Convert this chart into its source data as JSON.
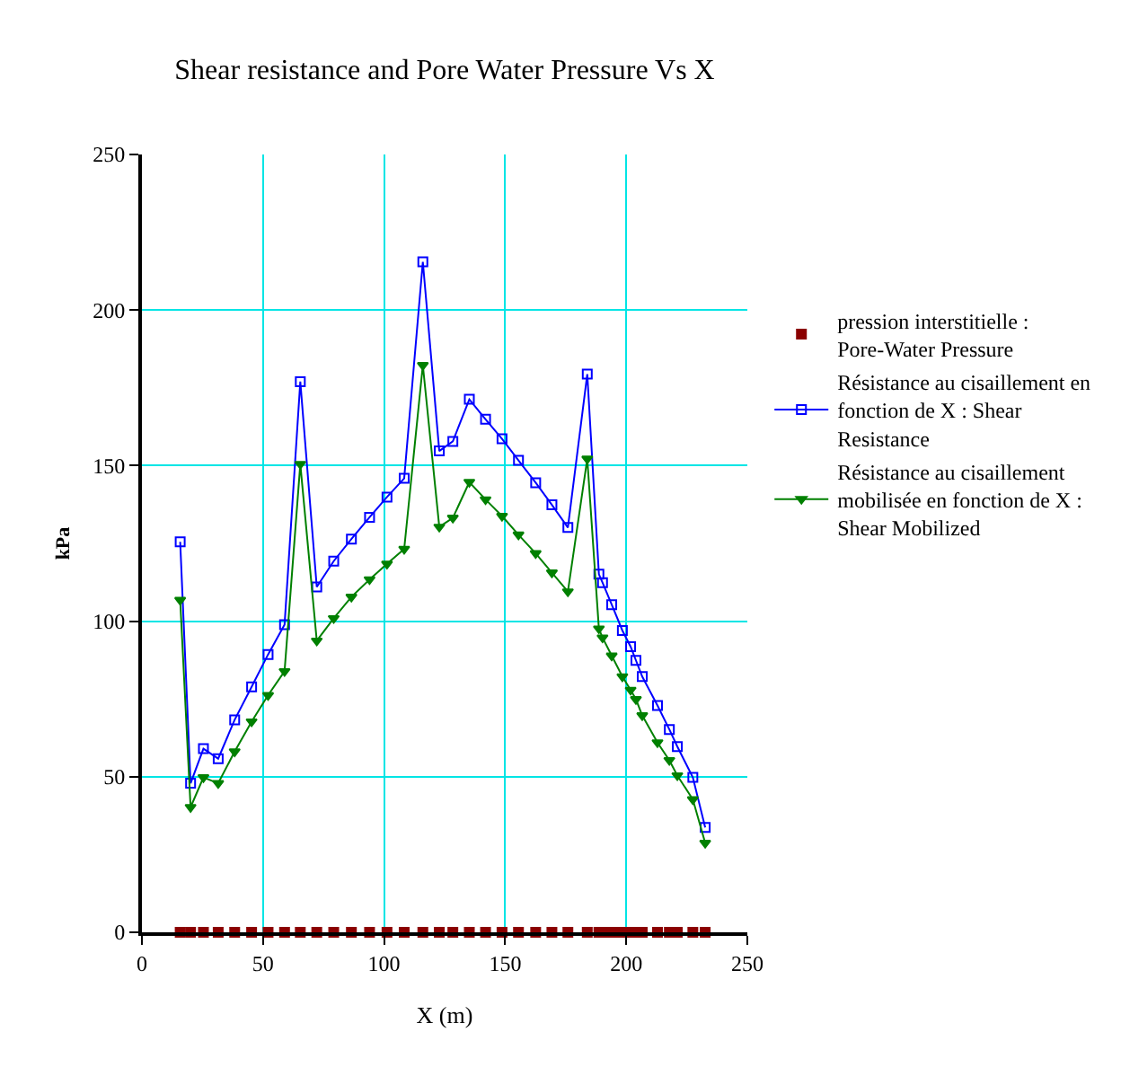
{
  "chart_data": {
    "type": "line",
    "title": "Shear resistance and Pore Water Pressure Vs X",
    "xlabel": "X (m)",
    "ylabel": "kPa",
    "x": [
      15.8,
      20.1,
      25.4,
      31.5,
      38.3,
      45.3,
      52.1,
      58.9,
      65.4,
      72.2,
      79.2,
      86.5,
      94,
      101.2,
      108.3,
      116,
      122.8,
      128.4,
      135.2,
      141.9,
      148.7,
      155.5,
      162.6,
      169.3,
      175.9,
      183.9,
      188.7,
      190.2,
      194,
      198.4,
      201.8,
      204,
      206.6,
      212.9,
      217.8,
      221.1,
      227.5,
      232.6
    ],
    "series": [
      {
        "name": "pression interstitielle : Pore-Water Pressure",
        "type": "scatter",
        "color": "#8b0000",
        "marker": "square",
        "values": [
          0,
          0,
          0,
          0,
          0,
          0,
          0,
          0,
          0,
          0,
          0,
          0,
          0,
          0,
          0,
          0,
          0,
          0,
          0,
          0,
          0,
          0,
          0,
          0,
          0,
          0,
          0,
          0,
          0,
          0,
          0,
          0,
          0,
          0,
          0,
          0,
          0,
          0
        ]
      },
      {
        "name": "Résistance au cisaillement en fonction de X : Shear Resistance",
        "color": "#0000ff",
        "marker": "square",
        "values": [
          125.5,
          47.9,
          59,
          55.8,
          68.3,
          78.9,
          89.3,
          98.9,
          177,
          111,
          119.3,
          126.4,
          133.4,
          139.9,
          145.9,
          215.5,
          154.7,
          157.8,
          171.3,
          164.9,
          158.6,
          151.7,
          144.5,
          137.4,
          130.1,
          179.4,
          115.1,
          112.4,
          105.3,
          97,
          91.8,
          87.4,
          82.2,
          72.9,
          65.2,
          59.7,
          49.8,
          33.7
        ]
      },
      {
        "name": "Résistance au cisaillement mobilisée en fonction de X : Shear Mobilized",
        "color": "#008000",
        "marker": "triangle",
        "values": [
          106.8,
          40.2,
          49.8,
          47.9,
          58.1,
          67.7,
          76.2,
          83.9,
          150.5,
          93.7,
          100.9,
          107.8,
          113.4,
          118.4,
          123.2,
          182.3,
          130.3,
          133.2,
          144.7,
          139.1,
          133.8,
          127.8,
          121.8,
          115.6,
          109.5,
          152.2,
          97.6,
          94.7,
          88.9,
          82.2,
          77.9,
          74.9,
          69.7,
          61,
          55.3,
          50.4,
          42.7,
          28.7
        ]
      }
    ],
    "xlim": [
      0,
      250
    ],
    "xticks": [
      0,
      50,
      100,
      150,
      200,
      250
    ],
    "ylim": [
      0,
      250
    ],
    "yticks": [
      0,
      50,
      100,
      150,
      200,
      250
    ],
    "grid": true,
    "legend": "right",
    "line_style": "solid"
  }
}
